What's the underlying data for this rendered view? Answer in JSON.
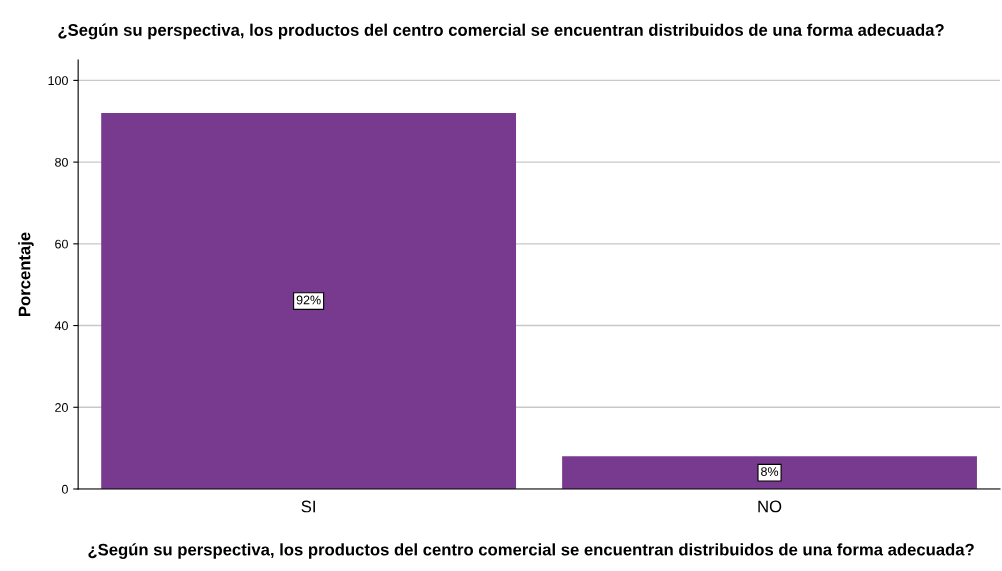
{
  "chart_data": {
    "type": "bar",
    "title": "¿Según su perspectiva, los productos del centro comercial se encuentran distribuidos de una forma adecuada?",
    "xlabel": "¿Según su perspectiva, los productos del centro comercial se encuentran distribuidos de una forma adecuada?",
    "ylabel": "Porcentaje",
    "categories": [
      "SI",
      "NO"
    ],
    "values": [
      92,
      8
    ],
    "value_labels": [
      "92%",
      "8%"
    ],
    "color": "#783a8e",
    "ylim": [
      0,
      105
    ],
    "yticks": [
      0,
      20,
      40,
      60,
      80,
      100
    ],
    "grid": "y",
    "legend": false
  }
}
